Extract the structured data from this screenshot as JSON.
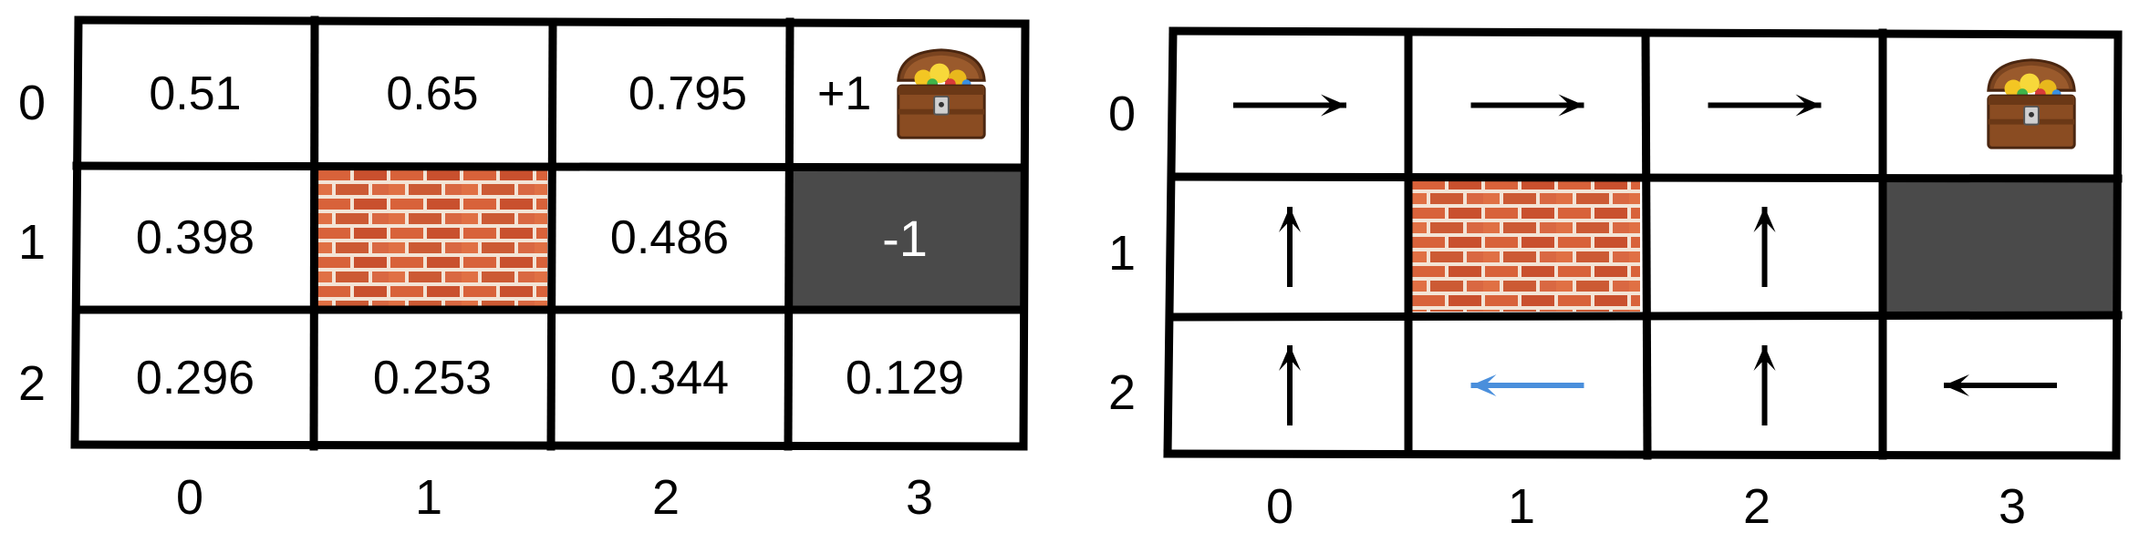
{
  "left_grid": {
    "row_labels": [
      "0",
      "1",
      "2"
    ],
    "col_labels": [
      "0",
      "1",
      "2",
      "3"
    ],
    "cells": {
      "r0c0": "0.51",
      "r0c1": "0.65",
      "r0c2": "0.795",
      "r0c3": "+1",
      "r1c0": "0.398",
      "r1c2": "0.486",
      "r1c3": "-1",
      "r2c0": "0.296",
      "r2c1": "0.253",
      "r2c2": "0.344",
      "r2c3": "0.129"
    },
    "wall_cell": "r1c1",
    "terminal_negative_cell": "r1c3",
    "goal_cell": "r0c3"
  },
  "right_grid": {
    "row_labels": [
      "0",
      "1",
      "2"
    ],
    "col_labels": [
      "0",
      "1",
      "2",
      "3"
    ],
    "policy": {
      "r0c0": "right",
      "r0c1": "right",
      "r0c2": "right",
      "r1c0": "up",
      "r1c2": "up",
      "r2c0": "up",
      "r2c1": "left",
      "r2c2": "up",
      "r2c3": "left"
    },
    "highlighted_cell": "r2c1",
    "wall_cell": "r1c1",
    "terminal_negative_cell": "r1c3",
    "goal_cell": "r0c3"
  },
  "colors": {
    "dark_cell": "#4a4a4a",
    "highlight_arrow": "#4a8fdc",
    "arrow": "#000000",
    "brick": "#d9653b",
    "mortar": "#f4e7dc"
  },
  "icons": {
    "treasure": "treasure-chest-icon",
    "wall": "brick-wall-icon"
  }
}
